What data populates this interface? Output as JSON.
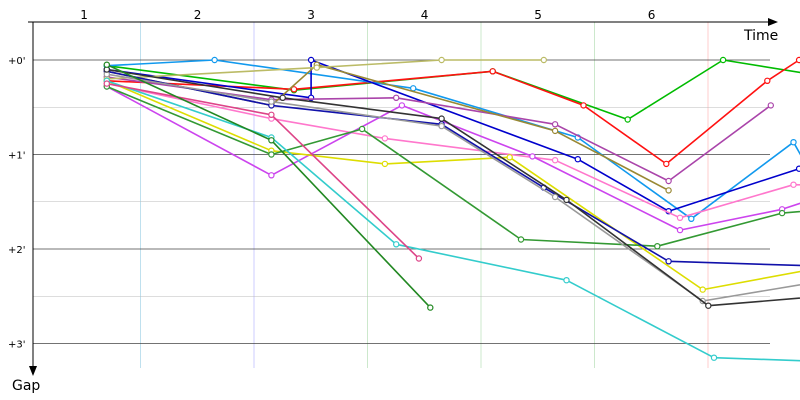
{
  "chart_data": {
    "type": "line",
    "title": "",
    "x_axis": {
      "label": "Time",
      "tick_labels": [
        "1",
        "2",
        "3",
        "4",
        "5",
        "6"
      ]
    },
    "y_axis": {
      "label": "Gap",
      "tick_labels": [
        "+0'",
        "+1'",
        "+2'",
        "+3'"
      ],
      "inverted": true,
      "unit": "minutes"
    },
    "series": [
      {
        "color": "#00bb00",
        "points": [
          [
            0.65,
            0.06
          ],
          [
            2.3,
            0.32
          ],
          [
            4.05,
            0.12
          ],
          [
            5.24,
            0.63
          ],
          [
            6.08,
            0.0
          ],
          [
            6.8,
            0.14
          ]
        ]
      },
      {
        "color": "#ff1111",
        "points": [
          [
            0.65,
            0.22
          ],
          [
            2.3,
            0.31
          ],
          [
            4.05,
            0.12
          ],
          [
            4.85,
            0.48
          ],
          [
            5.58,
            1.1
          ],
          [
            6.47,
            0.22
          ],
          [
            6.75,
            0.0
          ]
        ]
      },
      {
        "color": "#1199ee",
        "points": [
          [
            0.65,
            0.06
          ],
          [
            1.6,
            0.0
          ],
          [
            3.35,
            0.3
          ],
          [
            4.8,
            0.82
          ],
          [
            5.8,
            1.68
          ],
          [
            6.7,
            0.87
          ],
          [
            7.1,
            1.72
          ]
        ]
      },
      {
        "color": "#0000cc",
        "points": [
          [
            0.65,
            0.1
          ],
          [
            2.45,
            0.4
          ],
          [
            2.45,
            0.0
          ],
          [
            4.8,
            1.05
          ],
          [
            5.6,
            1.6
          ],
          [
            6.75,
            1.15
          ],
          [
            7.3,
            0.88
          ]
        ]
      },
      {
        "color": "#aa44aa",
        "points": [
          [
            0.65,
            0.18
          ],
          [
            2.1,
            0.42
          ],
          [
            3.2,
            0.4
          ],
          [
            4.6,
            0.68
          ],
          [
            5.6,
            1.28
          ],
          [
            6.5,
            0.48
          ]
        ]
      },
      {
        "color": "#998833",
        "points": [
          [
            0.65,
            0.12
          ],
          [
            2.1,
            0.48
          ],
          [
            2.5,
            0.05
          ],
          [
            4.6,
            0.75
          ],
          [
            5.6,
            1.38
          ]
        ]
      },
      {
        "color": "#bbbb66",
        "points": [
          [
            0.65,
            0.2
          ],
          [
            2.5,
            0.08
          ],
          [
            3.6,
            0.0
          ],
          [
            4.5,
            0.0
          ]
        ]
      },
      {
        "color": "#ff77cc",
        "points": [
          [
            0.65,
            0.25
          ],
          [
            2.1,
            0.62
          ],
          [
            3.1,
            0.83
          ],
          [
            4.6,
            1.06
          ],
          [
            5.7,
            1.67
          ],
          [
            6.7,
            1.32
          ],
          [
            7.3,
            1.33
          ]
        ]
      },
      {
        "color": "#cc44ee",
        "points": [
          [
            0.65,
            0.28
          ],
          [
            2.1,
            1.22
          ],
          [
            3.25,
            0.48
          ],
          [
            4.4,
            1.02
          ],
          [
            5.7,
            1.8
          ],
          [
            6.6,
            1.58
          ],
          [
            7.5,
            1.22
          ]
        ]
      },
      {
        "color": "#dddd00",
        "points": [
          [
            0.65,
            0.22
          ],
          [
            2.1,
            0.96
          ],
          [
            3.1,
            1.1
          ],
          [
            4.2,
            1.03
          ],
          [
            5.9,
            2.43
          ],
          [
            6.8,
            2.23
          ],
          [
            7.8,
            2.25
          ]
        ]
      },
      {
        "color": "#339933",
        "points": [
          [
            0.65,
            0.28
          ],
          [
            2.1,
            1.0
          ],
          [
            2.9,
            0.73
          ],
          [
            4.3,
            1.9
          ],
          [
            5.5,
            1.97
          ],
          [
            6.6,
            1.62
          ],
          [
            7.5,
            1.53
          ]
        ]
      },
      {
        "color": "#1111aa",
        "points": [
          [
            0.65,
            0.12
          ],
          [
            2.1,
            0.48
          ],
          [
            3.6,
            0.68
          ],
          [
            4.5,
            1.35
          ],
          [
            5.6,
            2.13
          ],
          [
            6.9,
            2.18
          ]
        ]
      },
      {
        "color": "#999999",
        "points": [
          [
            0.65,
            0.15
          ],
          [
            2.1,
            0.44
          ],
          [
            3.6,
            0.7
          ],
          [
            4.6,
            1.45
          ],
          [
            5.9,
            2.55
          ],
          [
            6.9,
            2.35
          ]
        ]
      },
      {
        "color": "#333333",
        "points": [
          [
            0.65,
            0.1
          ],
          [
            2.2,
            0.4
          ],
          [
            3.6,
            0.62
          ],
          [
            4.7,
            1.48
          ],
          [
            5.95,
            2.6
          ],
          [
            6.95,
            2.5
          ]
        ]
      },
      {
        "color": "#33cccc",
        "points": [
          [
            0.65,
            0.22
          ],
          [
            2.1,
            0.82
          ],
          [
            3.2,
            1.95
          ],
          [
            4.7,
            2.33
          ],
          [
            6.0,
            3.15
          ],
          [
            7.2,
            3.2
          ]
        ]
      },
      {
        "color": "#dd4488",
        "points": [
          [
            0.65,
            0.25
          ],
          [
            2.1,
            0.58
          ],
          [
            3.4,
            2.1
          ]
        ]
      },
      {
        "color": "#228822",
        "points": [
          [
            0.65,
            0.05
          ],
          [
            2.1,
            0.85
          ],
          [
            3.5,
            2.62
          ]
        ]
      }
    ]
  }
}
